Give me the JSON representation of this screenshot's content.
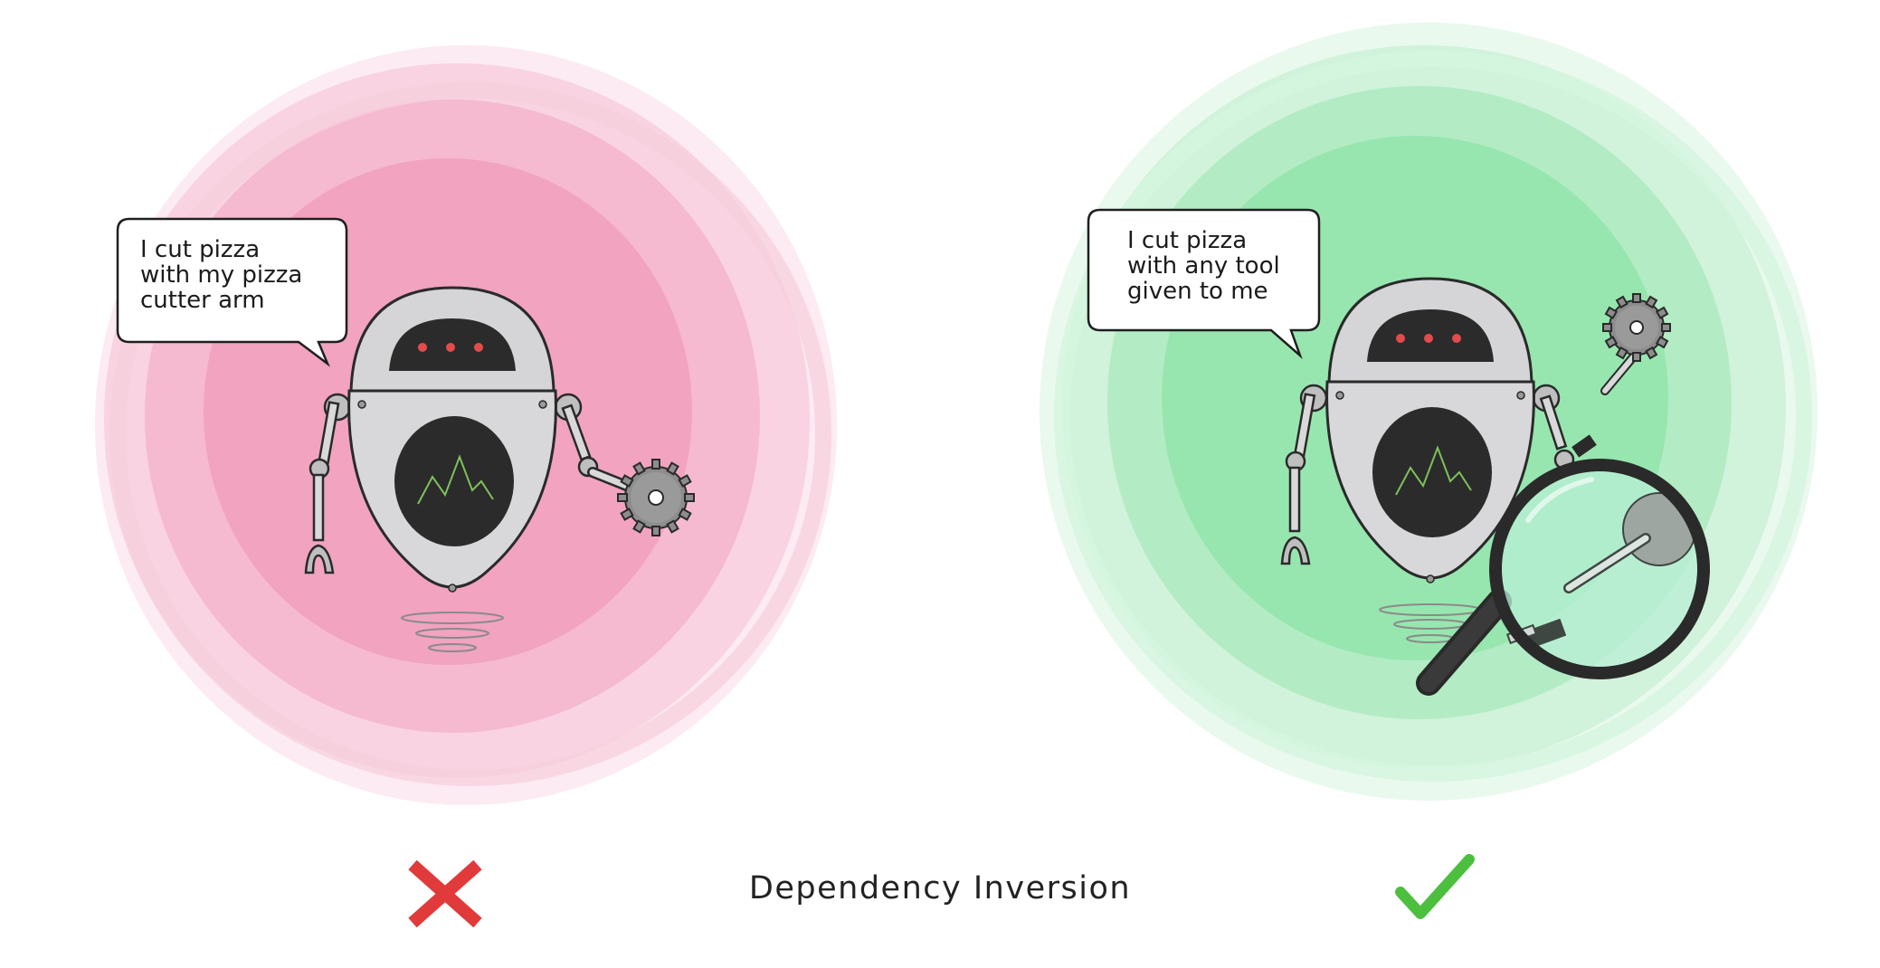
{
  "caption": "Dependency Inversion",
  "left_panel": {
    "speech": "I cut pizza\nwith my pizza\ncutter arm",
    "background_color": "#ee8fb1",
    "verdict_icon": "cross-icon",
    "verdict_color": "#e03a3a"
  },
  "right_panel": {
    "speech": "I cut pizza\nwith any tool\ngiven to me",
    "background_color": "#7fe39e",
    "verdict_icon": "check-icon",
    "verdict_color": "#4cbf3f"
  }
}
